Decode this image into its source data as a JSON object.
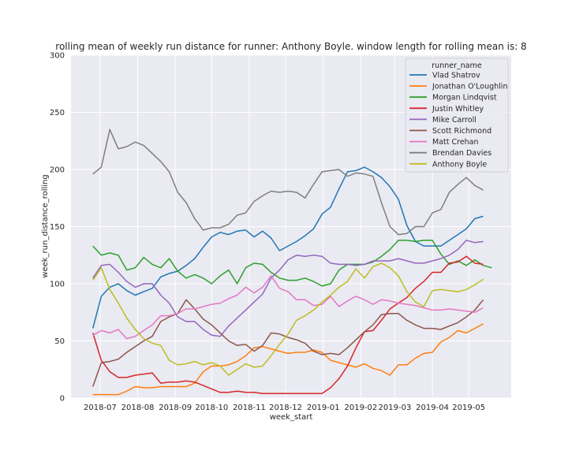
{
  "chart_data": {
    "type": "line",
    "title": "rolling mean of weekly run distance for runner: Anthony Boyle. window length for rolling mean is: 8",
    "xlabel": "week_start",
    "ylabel": "week_run_distance_rolling",
    "ylim": [
      0,
      300
    ],
    "yticks": [
      0,
      50,
      100,
      150,
      200,
      250,
      300
    ],
    "xticks": [
      "2018-07",
      "2018-08",
      "2018-09",
      "2018-10",
      "2018-11",
      "2018-12",
      "2019-01",
      "2019-02",
      "2019-03",
      "2019-04",
      "2019-05"
    ],
    "x_start": "2018-06-25",
    "x_step_days": 7,
    "xlim": [
      "2018-06-07",
      "2019-06-05"
    ],
    "grid": true,
    "legend_title": "runner_name",
    "legend_position": "top-right",
    "series": [
      {
        "name": "Vlad Shatrov",
        "color": "#1f77b4",
        "values": [
          61,
          89,
          97,
          100,
          94,
          90,
          93,
          96,
          106,
          109,
          111,
          116,
          122,
          132,
          141,
          145,
          143,
          146,
          147,
          141,
          146,
          140,
          129,
          133,
          137,
          142,
          148,
          161,
          167,
          183,
          198,
          199,
          202,
          198,
          193,
          185,
          174,
          151,
          137,
          133,
          133,
          133,
          138,
          143,
          148,
          157,
          159
        ]
      },
      {
        "name": "Jonathan O'Loughlin",
        "color": "#ff7f0e",
        "values": [
          3,
          3,
          3,
          3,
          6,
          10,
          9,
          9,
          10,
          10,
          10,
          10,
          13,
          23,
          28,
          28,
          29,
          32,
          37,
          44,
          45,
          43,
          41,
          39,
          40,
          40,
          42,
          40,
          33,
          31,
          29,
          27,
          30,
          26,
          24,
          20,
          29,
          29,
          35,
          39,
          40,
          49,
          53,
          59,
          57,
          61,
          65
        ]
      },
      {
        "name": "Morgan Lindqvist",
        "color": "#2ca02c",
        "values": [
          133,
          125,
          127,
          125,
          112,
          114,
          123,
          117,
          114,
          122,
          111,
          105,
          108,
          105,
          100,
          107,
          112,
          100,
          114,
          118,
          117,
          110,
          105,
          103,
          103,
          105,
          102,
          98,
          100,
          112,
          117,
          117,
          117,
          119,
          124,
          130,
          138,
          138,
          137,
          138,
          138,
          126,
          117,
          120,
          116,
          121,
          116,
          114
        ]
      },
      {
        "name": "Justin Whitley",
        "color": "#d62728",
        "values": [
          57,
          33,
          23,
          18,
          18,
          20,
          21,
          22,
          13,
          14,
          14,
          15,
          14,
          11,
          8,
          5,
          5,
          6,
          5,
          5,
          4,
          4,
          4,
          4,
          4,
          4,
          4,
          4,
          9,
          17,
          28,
          44,
          58,
          59,
          68,
          78,
          83,
          88,
          96,
          102,
          110,
          110,
          118,
          119,
          124,
          118,
          117
        ]
      },
      {
        "name": "Mike Carroll",
        "color": "#9467bd",
        "values": [
          105,
          116,
          117,
          110,
          102,
          97,
          100,
          100,
          90,
          83,
          71,
          67,
          67,
          60,
          55,
          54,
          63,
          70,
          77,
          84,
          91,
          105,
          112,
          121,
          125,
          124,
          125,
          124,
          118,
          117,
          117,
          116,
          117,
          120,
          120,
          120,
          122,
          120,
          118,
          118,
          120,
          122,
          125,
          130,
          138,
          136,
          137
        ]
      },
      {
        "name": "Scott Richmond",
        "color": "#8c564b",
        "values": [
          10,
          31,
          32,
          34,
          40,
          45,
          50,
          54,
          67,
          71,
          74,
          86,
          78,
          69,
          64,
          57,
          50,
          46,
          47,
          41,
          46,
          57,
          56,
          53,
          51,
          48,
          41,
          38,
          39,
          38,
          44,
          51,
          58,
          64,
          73,
          74,
          74,
          68,
          64,
          61,
          61,
          60,
          63,
          66,
          71,
          77,
          86
        ]
      },
      {
        "name": "Matt Crehan",
        "color": "#e377c2",
        "values": [
          55,
          59,
          57,
          60,
          52,
          54,
          59,
          64,
          72,
          72,
          74,
          78,
          78,
          80,
          82,
          83,
          87,
          90,
          97,
          92,
          97,
          107,
          96,
          93,
          86,
          86,
          81,
          82,
          89,
          80,
          85,
          89,
          86,
          82,
          86,
          85,
          83,
          82,
          81,
          79,
          77,
          77,
          78,
          77,
          76,
          75,
          79
        ]
      },
      {
        "name": "Brendan Davies",
        "color": "#7f7f7f",
        "values": [
          196,
          202,
          235,
          218,
          220,
          224,
          221,
          214,
          207,
          198,
          180,
          171,
          157,
          147,
          149,
          149,
          152,
          160,
          162,
          172,
          177,
          181,
          180,
          181,
          180,
          175,
          187,
          198,
          199,
          200,
          194,
          197,
          196,
          194,
          171,
          150,
          143,
          144,
          150,
          150,
          162,
          165,
          180,
          187,
          193,
          186,
          182
        ]
      },
      {
        "name": "Anthony Boyle",
        "color": "#bcbd22",
        "values": [
          103,
          114,
          95,
          83,
          70,
          60,
          52,
          48,
          46,
          33,
          29,
          30,
          32,
          29,
          31,
          28,
          20,
          25,
          30,
          27,
          28,
          37,
          47,
          56,
          68,
          72,
          77,
          84,
          90,
          97,
          102,
          113,
          105,
          115,
          118,
          114,
          107,
          93,
          84,
          80,
          94,
          95,
          94,
          93,
          95,
          99,
          104
        ]
      }
    ]
  }
}
